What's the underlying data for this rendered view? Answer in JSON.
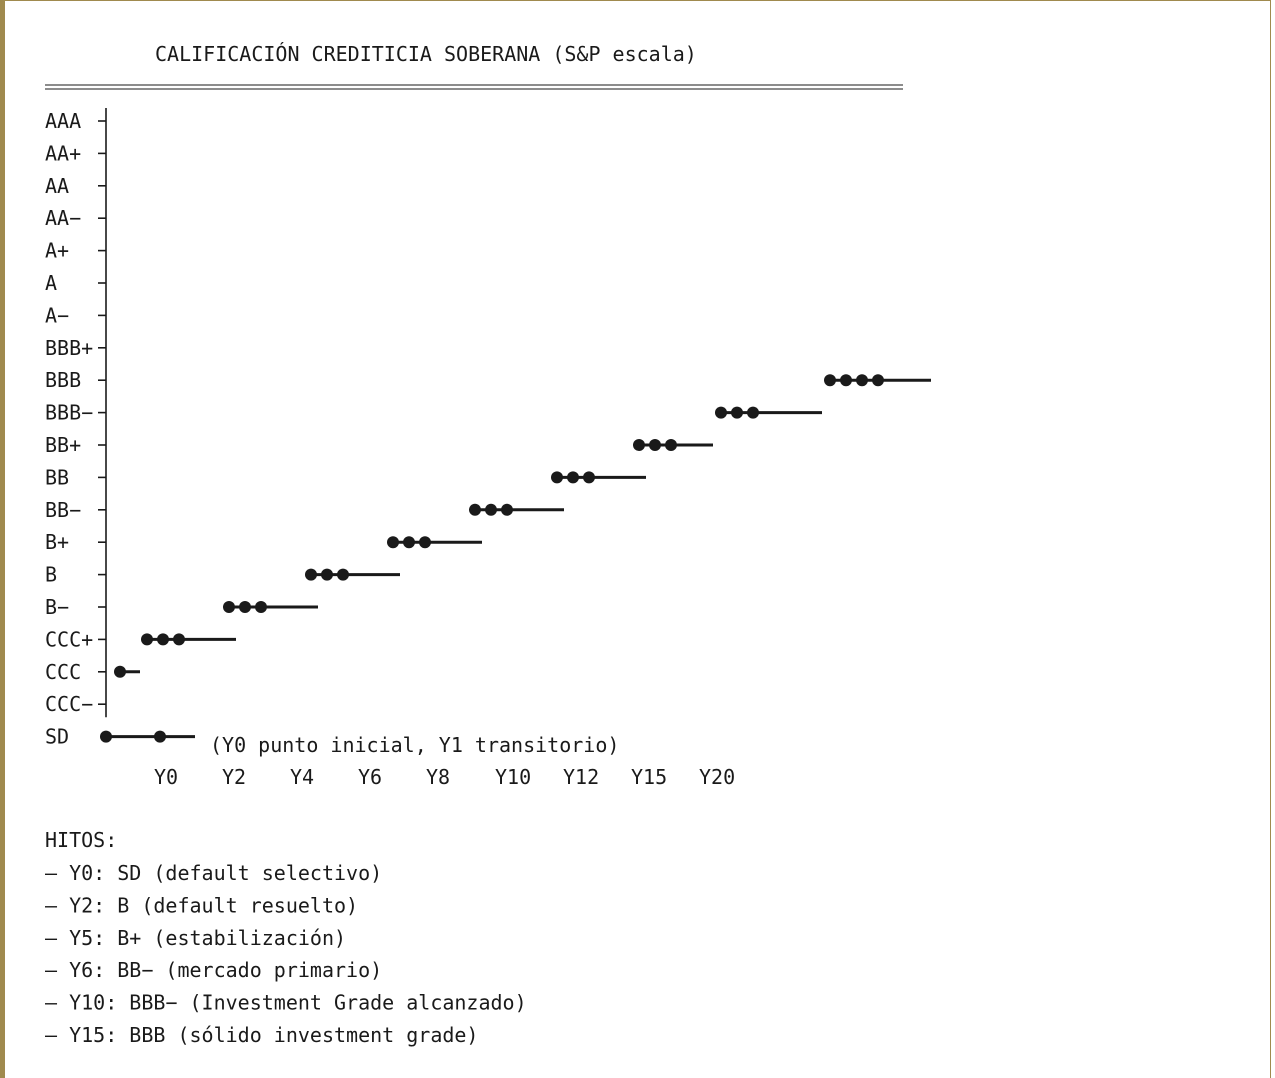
{
  "chart_data": {
    "type": "line",
    "title": "CALIFICACIÓN CREDITICIA SOBERANA (S&P escala)",
    "y_categories": [
      "AAA",
      "AA+",
      "AA",
      "AA−",
      "A+",
      "A",
      "A−",
      "BBB+",
      "BBB",
      "BBB−",
      "BB+",
      "BB",
      "BB−",
      "B+",
      "B",
      "B−",
      "CCC+",
      "CCC",
      "CCC−",
      "SD"
    ],
    "x_tick_labels": [
      "Y0",
      "Y2",
      "Y4",
      "Y6",
      "Y8",
      "Y10",
      "Y12",
      "Y15",
      "Y20"
    ],
    "sd_note": "(Y0 punto inicial, Y1 transitorio)",
    "steps": [
      {
        "rating": "SD",
        "dots": 2
      },
      {
        "rating": "CCC",
        "dots": 1
      },
      {
        "rating": "CCC+",
        "dots": 3
      },
      {
        "rating": "B−",
        "dots": 3
      },
      {
        "rating": "B",
        "dots": 3
      },
      {
        "rating": "B+",
        "dots": 3
      },
      {
        "rating": "BB−",
        "dots": 3
      },
      {
        "rating": "BB",
        "dots": 3
      },
      {
        "rating": "BB+",
        "dots": 3
      },
      {
        "rating": "BBB−",
        "dots": 3
      },
      {
        "rating": "BBB",
        "dots": 4
      }
    ],
    "grid": false,
    "legend": "none"
  },
  "milestones": {
    "heading": "HITOS:",
    "items": [
      "– Y0: SD (default selectivo)",
      "– Y2: B (default resuelto)",
      "– Y5: B+ (estabilización)",
      "– Y6: BB− (mercado primario)",
      "– Y10: BBB− (Investment Grade alcanzado)",
      "– Y15: BBB (sólido investment grade)"
    ]
  }
}
